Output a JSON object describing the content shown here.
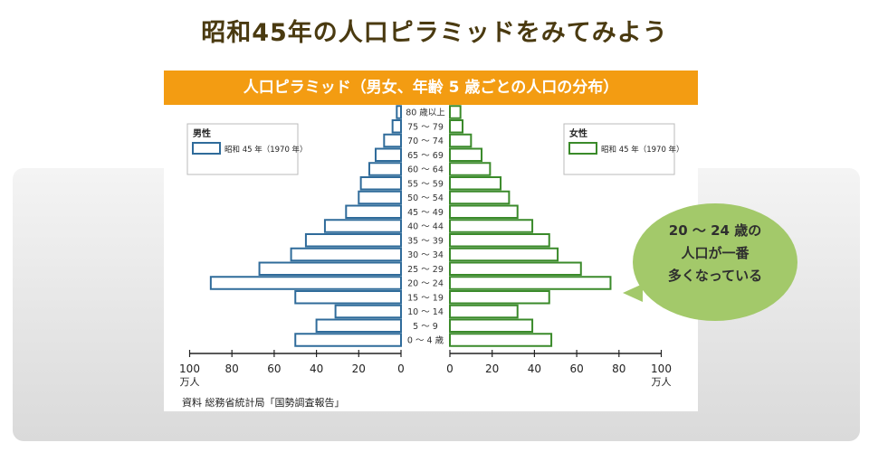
{
  "page": {
    "title": "昭和45年の人口ピラミッドをみてみよう",
    "banner": "人口ピラミッド（男女、年齢 5 歳ごとの人口の分布）",
    "source": "資料 総務省統計局「国勢調査報告」",
    "callout": [
      "20 ～ 24 歳の",
      "人口が一番",
      "多くなっている"
    ]
  },
  "colors": {
    "heading": "#4a3a10",
    "banner": "#f39c12",
    "male": "#2f6b9a",
    "female": "#3a8a2a",
    "callout": "#a3c96a"
  },
  "chart_data": {
    "type": "bar",
    "orientation": "horizontal",
    "categories": [
      "0 ～ 4 歳",
      "5 ～ 9",
      "10 ～ 14",
      "15 ～ 19",
      "20 ～ 24",
      "25 ～ 29",
      "30 ～ 34",
      "35 ～ 39",
      "40 ～ 44",
      "45 ～ 49",
      "50 ～ 54",
      "55 ～ 59",
      "60 ～ 64",
      "65 ～ 69",
      "70 ～ 74",
      "75 ～ 79",
      "80 歳以上"
    ],
    "series": [
      {
        "name": "男性",
        "legend_label": "昭和 45 年（1970 年）",
        "values": [
          50,
          40,
          31,
          50,
          90,
          67,
          52,
          45,
          36,
          26,
          20,
          19,
          15,
          12,
          8,
          4,
          2
        ]
      },
      {
        "name": "女性",
        "legend_label": "昭和 45 年（1970 年）",
        "values": [
          48,
          39,
          32,
          47,
          76,
          62,
          51,
          47,
          39,
          32,
          28,
          24,
          19,
          15,
          10,
          6,
          5
        ]
      }
    ],
    "xlim": [
      0,
      100
    ],
    "x_ticks": [
      "100",
      "80",
      "60",
      "40",
      "20",
      "0"
    ],
    "x_unit": "万人",
    "grid": false,
    "legend_position": "top-left / top-right"
  }
}
